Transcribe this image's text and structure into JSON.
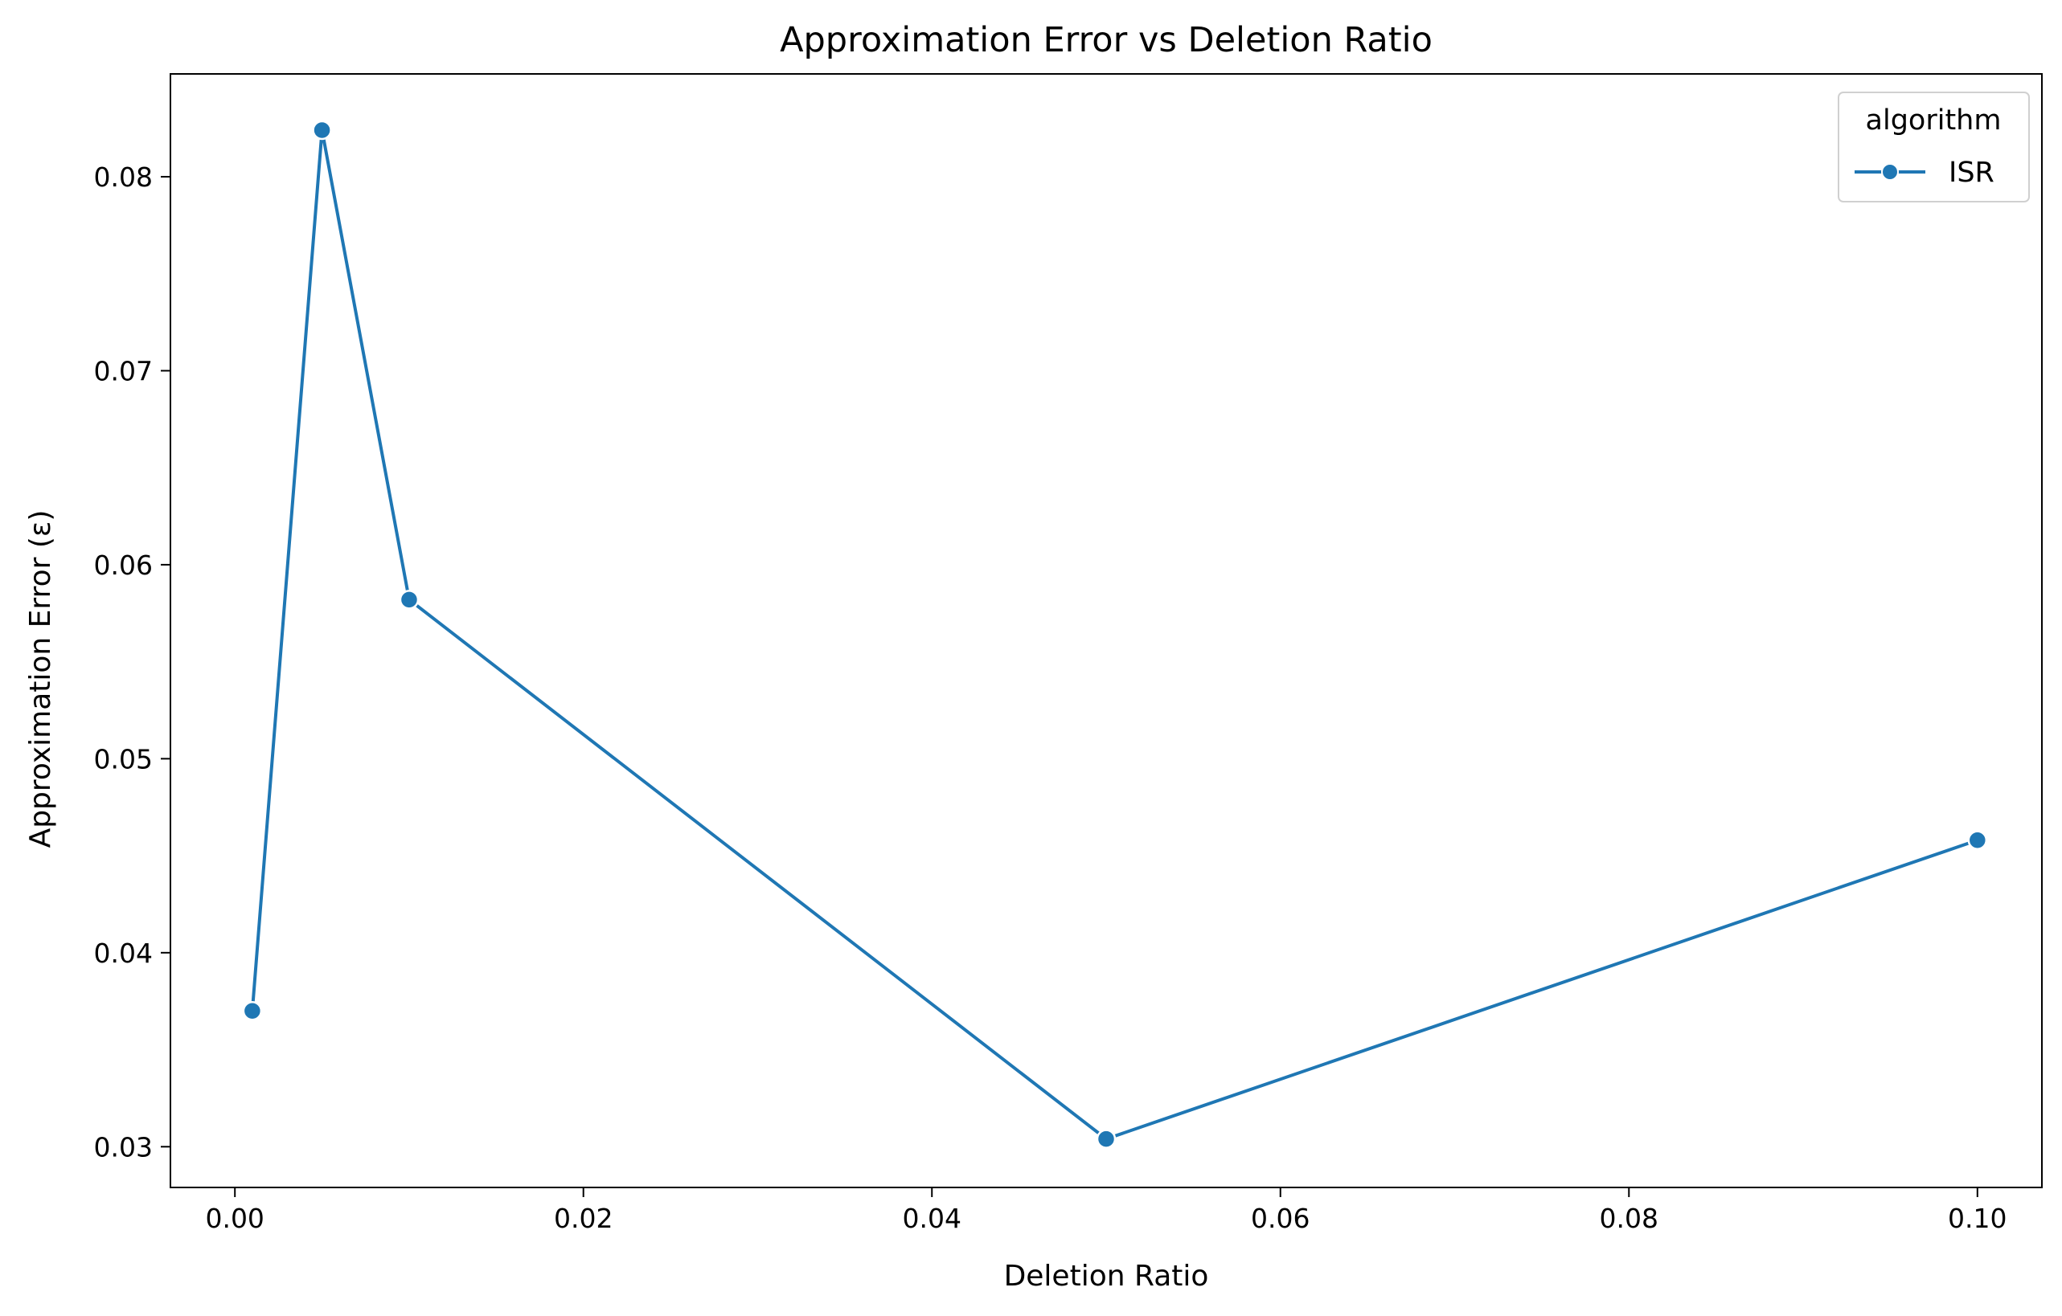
{
  "chart_data": {
    "type": "line",
    "title": "Approximation Error vs Deletion Ratio",
    "xlabel": "Deletion Ratio",
    "ylabel": "Approximation Error (ε)",
    "xlim": [
      -0.0037,
      0.1037
    ],
    "ylim": [
      0.0279,
      0.0853
    ],
    "xticks": [
      0.0,
      0.02,
      0.04,
      0.06,
      0.08,
      0.1
    ],
    "xtick_labels": [
      "0.00",
      "0.02",
      "0.04",
      "0.06",
      "0.08",
      "0.10"
    ],
    "yticks": [
      0.03,
      0.04,
      0.05,
      0.06,
      0.07,
      0.08
    ],
    "ytick_labels": [
      "0.03",
      "0.04",
      "0.05",
      "0.06",
      "0.07",
      "0.08"
    ],
    "grid": false,
    "legend": {
      "title": "algorithm",
      "placement": "top-right"
    },
    "series": [
      {
        "name": "ISR",
        "color": "#1f77b4",
        "marker": "circle",
        "x": [
          0.001,
          0.005,
          0.01,
          0.05,
          0.1
        ],
        "y": [
          0.037,
          0.0824,
          0.0582,
          0.0304,
          0.0458
        ]
      }
    ]
  }
}
